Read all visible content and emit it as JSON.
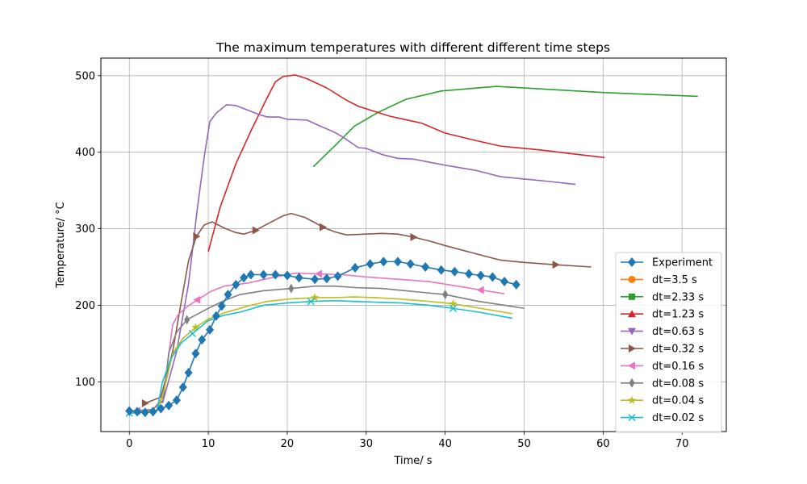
{
  "chart_data": {
    "type": "line",
    "title": "The maximum temperatures with different different time steps",
    "xlabel": "Time/ s",
    "ylabel": "Temperature/ °C",
    "xlim": [
      -3.6,
      75.6
    ],
    "ylim": [
      35,
      523
    ],
    "xticks": [
      0,
      10,
      20,
      30,
      40,
      50,
      60,
      70
    ],
    "yticks": [
      100,
      200,
      300,
      400,
      500
    ],
    "grid": true,
    "legend_position": "lower-right",
    "series": [
      {
        "name": "Experiment",
        "color": "#1f77b4",
        "marker": "diamond",
        "marker_every": 1,
        "points": [
          [
            0,
            62
          ],
          [
            1,
            61
          ],
          [
            2,
            60
          ],
          [
            3,
            61
          ],
          [
            4,
            65
          ],
          [
            5,
            69
          ],
          [
            6,
            76
          ],
          [
            6.8,
            93
          ],
          [
            7.5,
            112
          ],
          [
            8.4,
            137
          ],
          [
            9.2,
            155
          ],
          [
            10.2,
            168
          ],
          [
            11,
            186
          ],
          [
            11.7,
            199
          ],
          [
            12.5,
            214
          ],
          [
            13.5,
            227
          ],
          [
            14.5,
            236
          ],
          [
            15.4,
            240
          ],
          [
            17,
            240
          ],
          [
            18.5,
            240
          ],
          [
            20,
            239
          ],
          [
            21.5,
            236
          ],
          [
            23.5,
            234
          ],
          [
            25,
            235
          ],
          [
            26.4,
            238
          ],
          [
            28.6,
            249
          ],
          [
            30.5,
            254
          ],
          [
            32.2,
            257
          ],
          [
            34,
            257
          ],
          [
            35.6,
            254
          ],
          [
            37.5,
            250
          ],
          [
            39.5,
            246
          ],
          [
            41.2,
            244
          ],
          [
            43,
            241
          ],
          [
            44.5,
            239
          ],
          [
            46,
            237
          ],
          [
            47.5,
            231
          ],
          [
            49,
            227
          ]
        ]
      },
      {
        "name": "dt=3.5 s",
        "color": "#ff7f0e",
        "marker": "circle",
        "marker_every": 0,
        "points": []
      },
      {
        "name": "dt=2.33 s",
        "color": "#2ca02c",
        "marker": "square",
        "marker_every": 0,
        "points": [
          [
            23.3,
            381
          ],
          [
            26,
            408
          ],
          [
            28.5,
            434
          ],
          [
            31.5,
            452
          ],
          [
            35,
            469
          ],
          [
            39.5,
            480
          ],
          [
            46.5,
            486
          ],
          [
            60,
            478
          ],
          [
            72,
            473
          ]
        ]
      },
      {
        "name": "dt=1.23 s",
        "color": "#d62728",
        "marker": "triangle-up",
        "marker_every": 0,
        "points": [
          [
            10,
            270
          ],
          [
            11.5,
            328
          ],
          [
            13.5,
            385
          ],
          [
            15.5,
            430
          ],
          [
            17.5,
            472
          ],
          [
            18.5,
            492
          ],
          [
            19.5,
            499
          ],
          [
            21,
            501
          ],
          [
            22.5,
            496
          ],
          [
            25,
            484
          ],
          [
            27.5,
            468
          ],
          [
            29,
            460
          ],
          [
            33,
            447
          ],
          [
            37,
            438
          ],
          [
            40,
            425
          ],
          [
            44,
            415
          ],
          [
            47,
            408
          ],
          [
            52,
            403
          ],
          [
            56,
            398
          ],
          [
            60.2,
            393
          ]
        ]
      },
      {
        "name": "dt=0.63 s",
        "color": "#9467bd",
        "marker": "triangle-down",
        "marker_every": 0,
        "points": [
          [
            4.2,
            72
          ],
          [
            6,
            140
          ],
          [
            7.5,
            228
          ],
          [
            8.6,
            325
          ],
          [
            9.5,
            395
          ],
          [
            10.2,
            440
          ],
          [
            11,
            451
          ],
          [
            12.3,
            462
          ],
          [
            13.5,
            461
          ],
          [
            15,
            455
          ],
          [
            16.5,
            449
          ],
          [
            17.5,
            446
          ],
          [
            19,
            446
          ],
          [
            20,
            443
          ],
          [
            22.5,
            442
          ],
          [
            24,
            435
          ],
          [
            26,
            426
          ],
          [
            27,
            420
          ],
          [
            28,
            413
          ],
          [
            29,
            406
          ],
          [
            30,
            405
          ],
          [
            32,
            397
          ],
          [
            34,
            392
          ],
          [
            36,
            391
          ],
          [
            38,
            387
          ],
          [
            40,
            383
          ],
          [
            44,
            376
          ],
          [
            47,
            368
          ],
          [
            50,
            365
          ],
          [
            53,
            362
          ],
          [
            56.5,
            358
          ]
        ]
      },
      {
        "name": "dt=0.32 s",
        "color": "#8c564b",
        "marker": "triangle-right",
        "marker_every": 6,
        "points": [
          [
            2,
            72
          ],
          [
            3,
            76
          ],
          [
            4,
            80
          ],
          [
            5.5,
            140
          ],
          [
            6.5,
            200
          ],
          [
            7.5,
            258
          ],
          [
            8.5,
            290
          ],
          [
            9.5,
            305
          ],
          [
            10.5,
            309
          ],
          [
            12,
            301
          ],
          [
            13.5,
            295
          ],
          [
            14.5,
            293
          ],
          [
            16,
            298
          ],
          [
            18,
            309
          ],
          [
            19.5,
            317
          ],
          [
            20.5,
            320
          ],
          [
            22.2,
            315
          ],
          [
            23.5,
            308
          ],
          [
            24.5,
            302
          ],
          [
            26,
            296
          ],
          [
            27.5,
            292
          ],
          [
            30,
            293
          ],
          [
            32,
            294
          ],
          [
            34,
            293
          ],
          [
            36,
            289
          ],
          [
            38,
            284
          ],
          [
            40,
            278
          ],
          [
            44,
            267
          ],
          [
            47,
            259
          ],
          [
            50,
            256
          ],
          [
            54,
            253
          ],
          [
            58.5,
            250
          ]
        ]
      },
      {
        "name": "dt=0.16 s",
        "color": "#e377c2",
        "marker": "triangle-left",
        "marker_every": 6,
        "points": [
          [
            1,
            62
          ],
          [
            3,
            64
          ],
          [
            4.3,
            80
          ],
          [
            5.5,
            175
          ],
          [
            6.2,
            188
          ],
          [
            7.3,
            198
          ],
          [
            8.6,
            207
          ],
          [
            10.3,
            218
          ],
          [
            12,
            225
          ],
          [
            15,
            229
          ],
          [
            18,
            236
          ],
          [
            21,
            242
          ],
          [
            24,
            241
          ],
          [
            27,
            240
          ],
          [
            30,
            237
          ],
          [
            34,
            234
          ],
          [
            38,
            231
          ],
          [
            41,
            226
          ],
          [
            44.5,
            220
          ],
          [
            47.5,
            215
          ]
        ]
      },
      {
        "name": "dt=0.08 s",
        "color": "#7f7f7f",
        "marker": "thin-diamond",
        "marker_every": 6,
        "points": [
          [
            0,
            62
          ],
          [
            2,
            63
          ],
          [
            3,
            64
          ],
          [
            4.3,
            76
          ],
          [
            5,
            138
          ],
          [
            6,
            165
          ],
          [
            7.3,
            181
          ],
          [
            8.9,
            190
          ],
          [
            10.4,
            198
          ],
          [
            12,
            206
          ],
          [
            14,
            214
          ],
          [
            17,
            219
          ],
          [
            20.5,
            222
          ],
          [
            23.5,
            225
          ],
          [
            26,
            225
          ],
          [
            28.8,
            223
          ],
          [
            32,
            222
          ],
          [
            36,
            218
          ],
          [
            40,
            214
          ],
          [
            44.3,
            205
          ],
          [
            47.5,
            200
          ],
          [
            50,
            196
          ]
        ]
      },
      {
        "name": "dt=0.04 s",
        "color": "#bcbd22",
        "marker": "star",
        "marker_every": 6,
        "points": [
          [
            0,
            60
          ],
          [
            2,
            61
          ],
          [
            3.5,
            63
          ],
          [
            4.3,
            85
          ],
          [
            5.5,
            137
          ],
          [
            6.8,
            157
          ],
          [
            8.4,
            171
          ],
          [
            10,
            182
          ],
          [
            12,
            190
          ],
          [
            15,
            199
          ],
          [
            17.5,
            205
          ],
          [
            20,
            208
          ],
          [
            23.5,
            210
          ],
          [
            26,
            210
          ],
          [
            28.5,
            211
          ],
          [
            31,
            210
          ],
          [
            34.5,
            208
          ],
          [
            38,
            205
          ],
          [
            41,
            202
          ],
          [
            44.5,
            196
          ],
          [
            48.5,
            189
          ]
        ]
      },
      {
        "name": "dt=0.02 s",
        "color": "#17becf",
        "marker": "x",
        "marker_every": 6,
        "points": [
          [
            0,
            59
          ],
          [
            2,
            60
          ],
          [
            3.5,
            62
          ],
          [
            4.2,
            100
          ],
          [
            5.3,
            131
          ],
          [
            6.6,
            151
          ],
          [
            8,
            163
          ],
          [
            10,
            180
          ],
          [
            12,
            187
          ],
          [
            14,
            191
          ],
          [
            17,
            200
          ],
          [
            20,
            203
          ],
          [
            23,
            205
          ],
          [
            26,
            206
          ],
          [
            28.6,
            205
          ],
          [
            31.5,
            204
          ],
          [
            34.5,
            203
          ],
          [
            38,
            200
          ],
          [
            41,
            196
          ],
          [
            44.3,
            191
          ],
          [
            48.5,
            183
          ]
        ]
      }
    ]
  }
}
